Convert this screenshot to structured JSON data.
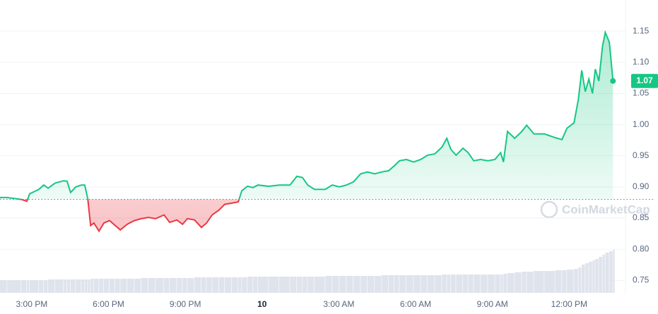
{
  "chart_data": {
    "type": "line",
    "watermark": "CoinMarketCap",
    "x": [
      13.76,
      14.04,
      14.59,
      14.81,
      14.92,
      15.28,
      15.47,
      15.64,
      15.91,
      16.25,
      16.38,
      16.52,
      16.72,
      16.94,
      17.07,
      17.19,
      17.3,
      17.43,
      17.63,
      17.82,
      18.04,
      18.26,
      18.46,
      18.73,
      19.01,
      19.28,
      19.56,
      19.84,
      20.17,
      20.39,
      20.67,
      20.89,
      21.08,
      21.36,
      21.63,
      21.83,
      22.05,
      22.32,
      22.54,
      22.82,
      23.07,
      23.21,
      23.43,
      23.65,
      23.84,
      24.26,
      24.67,
      25.09,
      25.36,
      25.58,
      25.78,
      26.05,
      26.47,
      26.74,
      27.02,
      27.3,
      27.57,
      27.85,
      28.12,
      28.4,
      28.68,
      28.95,
      29.17,
      29.37,
      29.64,
      29.92,
      30.2,
      30.47,
      30.75,
      31.03,
      31.22,
      31.38,
      31.58,
      31.85,
      32.05,
      32.27,
      32.54,
      32.82,
      33.1,
      33.32,
      33.43,
      33.59,
      33.87,
      34.15,
      34.34,
      34.62,
      35.03,
      35.45,
      35.72,
      35.91,
      36.19,
      36.36,
      36.49,
      36.63,
      36.77,
      36.91,
      37.02,
      37.16,
      37.3,
      37.41,
      37.57,
      37.71
    ],
    "series": [
      {
        "up_color": "#16c784",
        "down_color": "#ea3943",
        "values": [
          0.883,
          0.883,
          0.88,
          0.877,
          0.889,
          0.896,
          0.903,
          0.898,
          0.906,
          0.91,
          0.909,
          0.891,
          0.9,
          0.903,
          0.903,
          0.881,
          0.838,
          0.842,
          0.829,
          0.842,
          0.846,
          0.838,
          0.831,
          0.84,
          0.846,
          0.849,
          0.851,
          0.849,
          0.855,
          0.843,
          0.847,
          0.84,
          0.849,
          0.847,
          0.835,
          0.842,
          0.855,
          0.863,
          0.872,
          0.874,
          0.876,
          0.894,
          0.901,
          0.899,
          0.903,
          0.901,
          0.903,
          0.903,
          0.917,
          0.915,
          0.903,
          0.896,
          0.896,
          0.903,
          0.9,
          0.903,
          0.908,
          0.921,
          0.924,
          0.921,
          0.924,
          0.926,
          0.934,
          0.942,
          0.944,
          0.94,
          0.944,
          0.951,
          0.953,
          0.964,
          0.978,
          0.96,
          0.951,
          0.962,
          0.955,
          0.942,
          0.944,
          0.942,
          0.944,
          0.955,
          0.94,
          0.989,
          0.978,
          0.989,
          0.999,
          0.985,
          0.985,
          0.979,
          0.976,
          0.994,
          1.003,
          1.041,
          1.087,
          1.053,
          1.073,
          1.05,
          1.089,
          1.07,
          1.125,
          1.148,
          1.132,
          1.07
        ]
      }
    ],
    "volume": {
      "color": "#dfe3ec",
      "lim": [
        0,
        100
      ],
      "values": [
        18,
        18,
        18,
        18,
        18,
        18,
        18,
        19,
        19,
        19,
        19,
        19,
        19,
        19,
        19,
        19,
        20,
        20,
        20,
        20,
        20,
        20,
        20,
        20,
        20,
        21,
        21,
        21,
        21,
        21,
        21,
        21,
        21,
        22,
        22,
        22,
        22,
        22,
        22,
        22,
        22,
        22,
        23,
        23,
        23,
        23,
        23,
        23,
        23,
        23,
        23,
        23,
        24,
        24,
        24,
        24,
        24,
        24,
        24,
        24,
        25,
        25,
        25,
        25,
        25,
        25,
        25,
        25,
        25,
        26,
        26,
        26,
        26,
        26,
        26,
        26,
        26,
        26,
        26,
        26,
        27,
        28,
        29,
        30,
        30,
        31,
        31,
        32,
        32,
        33,
        34,
        36,
        40,
        42,
        44,
        46,
        48,
        51,
        54,
        57,
        59,
        61
      ]
    },
    "baseline": 0.88,
    "current_price": 1.07,
    "xlim": [
      13.76,
      38.2
    ],
    "xticks": [
      {
        "value": 15,
        "label": "3:00 PM"
      },
      {
        "value": 18,
        "label": "6:00 PM"
      },
      {
        "value": 21,
        "label": "9:00 PM"
      },
      {
        "value": 24,
        "label": "10"
      },
      {
        "value": 27,
        "label": "3:00 AM"
      },
      {
        "value": 30,
        "label": "6:00 AM"
      },
      {
        "value": 33,
        "label": "9:00 AM"
      },
      {
        "value": 36,
        "label": "12:00 PM"
      }
    ],
    "ylim": [
      0.73,
      1.2
    ],
    "yticks": [
      {
        "value": 0.75,
        "label": "0.75"
      },
      {
        "value": 0.8,
        "label": "0.80"
      },
      {
        "value": 0.85,
        "label": "0.85"
      },
      {
        "value": 0.9,
        "label": "0.90"
      },
      {
        "value": 0.95,
        "label": "0.95"
      },
      {
        "value": 1.0,
        "label": "1.00"
      },
      {
        "value": 1.05,
        "label": "1.05"
      },
      {
        "value": 1.1,
        "label": "1.10"
      },
      {
        "value": 1.15,
        "label": "1.15"
      }
    ],
    "grid": true
  }
}
